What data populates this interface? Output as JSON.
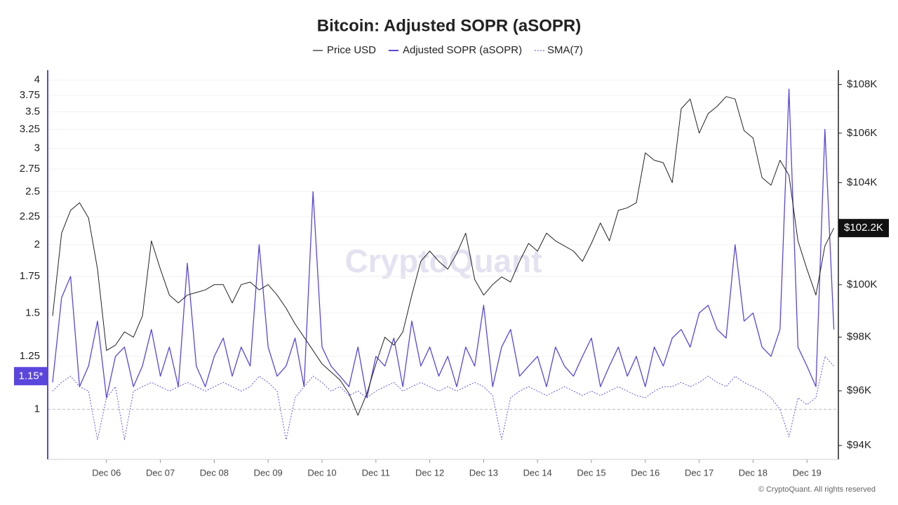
{
  "chart_data": {
    "type": "line",
    "title": "Bitcoin: Adjusted SOPR (aSOPR)",
    "watermark": "CryptoQuant",
    "footer": "© CryptoQuant. All rights reserved",
    "categories": [
      null,
      null,
      null,
      null,
      null,
      null,
      "Dec 06",
      null,
      null,
      null,
      null,
      null,
      "Dec 07",
      null,
      null,
      null,
      null,
      null,
      "Dec 08",
      null,
      null,
      null,
      null,
      null,
      "Dec 09",
      null,
      null,
      null,
      null,
      null,
      "Dec 10",
      null,
      null,
      null,
      null,
      null,
      "Dec 11",
      null,
      null,
      null,
      null,
      null,
      "Dec 12",
      null,
      null,
      null,
      null,
      null,
      "Dec 13",
      null,
      null,
      null,
      null,
      null,
      "Dec 14",
      null,
      null,
      null,
      null,
      null,
      "Dec 15",
      null,
      null,
      null,
      null,
      null,
      "Dec 16",
      null,
      null,
      null,
      null,
      null,
      "Dec 17",
      null,
      null,
      null,
      null,
      null,
      "Dec 18",
      null,
      null,
      null,
      null,
      null,
      "Dec 19",
      null,
      null,
      null
    ],
    "series": [
      {
        "name": "Price USD",
        "color": "#222222",
        "axis": "y2",
        "values": [
          98800,
          102000,
          102900,
          103200,
          102600,
          100600,
          97500,
          97700,
          98200,
          98000,
          98800,
          101700,
          100600,
          99600,
          99300,
          99600,
          99700,
          99800,
          100000,
          100000,
          99300,
          100000,
          100100,
          99800,
          100000,
          99600,
          99100,
          98500,
          98000,
          97500,
          97000,
          96700,
          96400,
          95900,
          95100,
          95900,
          97000,
          98000,
          97700,
          98200,
          99600,
          100900,
          101300,
          100900,
          100600,
          101200,
          102000,
          100200,
          99600,
          100000,
          100300,
          100100,
          100900,
          101600,
          101300,
          102000,
          101700,
          101500,
          101300,
          100900,
          101600,
          102400,
          101700,
          102900,
          103000,
          103200,
          105200,
          104900,
          104800,
          104000,
          107000,
          107400,
          106000,
          106800,
          107100,
          107500,
          107400,
          106100,
          105800,
          104200,
          103900,
          104900,
          104300,
          101700,
          100600,
          99600,
          101500,
          102200
        ]
      },
      {
        "name": "Adjusted SOPR (aSOPR)",
        "color": "#5a46dc",
        "values": [
          1.12,
          1.6,
          1.75,
          1.1,
          1.2,
          1.45,
          1.05,
          1.25,
          1.3,
          1.1,
          1.2,
          1.4,
          1.15,
          1.3,
          1.1,
          1.85,
          1.2,
          1.1,
          1.25,
          1.35,
          1.15,
          1.3,
          1.2,
          2.0,
          1.3,
          1.15,
          1.2,
          1.35,
          1.1,
          2.5,
          1.3,
          1.2,
          1.15,
          1.1,
          1.3,
          1.05,
          1.25,
          1.2,
          1.35,
          1.1,
          1.45,
          1.2,
          1.3,
          1.15,
          1.25,
          1.1,
          1.3,
          1.2,
          1.55,
          1.1,
          1.3,
          1.4,
          1.15,
          1.2,
          1.25,
          1.1,
          1.3,
          1.2,
          1.15,
          1.25,
          1.35,
          1.1,
          1.2,
          1.3,
          1.15,
          1.25,
          1.1,
          1.3,
          1.2,
          1.35,
          1.4,
          1.3,
          1.5,
          1.55,
          1.4,
          1.35,
          2.0,
          1.45,
          1.5,
          1.3,
          1.25,
          1.4,
          3.85,
          1.3,
          1.2,
          1.1,
          3.25,
          1.4
        ]
      },
      {
        "name": "SMA(7)",
        "color": "#5a46dc",
        "dashed": true,
        "values": [
          1.08,
          1.12,
          1.15,
          1.1,
          1.08,
          0.88,
          1.05,
          1.1,
          0.88,
          1.08,
          1.1,
          1.12,
          1.1,
          1.08,
          1.1,
          1.12,
          1.1,
          1.08,
          1.1,
          1.12,
          1.1,
          1.08,
          1.1,
          1.15,
          1.12,
          1.08,
          0.88,
          1.05,
          1.1,
          1.15,
          1.12,
          1.08,
          1.1,
          1.06,
          1.08,
          1.05,
          1.08,
          1.1,
          1.12,
          1.08,
          1.1,
          1.12,
          1.1,
          1.08,
          1.1,
          1.08,
          1.1,
          1.12,
          1.1,
          1.06,
          0.88,
          1.05,
          1.08,
          1.1,
          1.08,
          1.06,
          1.08,
          1.1,
          1.08,
          1.06,
          1.08,
          1.06,
          1.08,
          1.1,
          1.08,
          1.06,
          1.05,
          1.08,
          1.1,
          1.1,
          1.12,
          1.1,
          1.12,
          1.15,
          1.12,
          1.1,
          1.15,
          1.12,
          1.1,
          1.08,
          1.05,
          1.0,
          0.89,
          1.05,
          1.02,
          1.05,
          1.25,
          1.2
        ]
      }
    ],
    "ylim": [
      0.81,
      4.17
    ],
    "yticks": [
      1,
      1.25,
      1.5,
      1.75,
      2,
      2.25,
      2.5,
      2.75,
      3,
      3.25,
      3.5,
      3.75,
      4
    ],
    "ylog": true,
    "y2lim": [
      93500,
      108600
    ],
    "y2ticks": [
      {
        "value": 94000,
        "label": "$94K"
      },
      {
        "value": 96000,
        "label": "$96K"
      },
      {
        "value": 98000,
        "label": "$98K"
      },
      {
        "value": 100000,
        "label": "$100K"
      },
      {
        "value": 102000,
        "label": "$102K"
      },
      {
        "value": 104000,
        "label": "$104K"
      },
      {
        "value": 106000,
        "label": "$106K"
      },
      {
        "value": 108000,
        "label": "$108K"
      }
    ],
    "y2log": true,
    "y_marker": {
      "value": 1.15,
      "label": "1.15*"
    },
    "y2_marker": {
      "value": 102200,
      "label": "$102.2K"
    },
    "grid": true
  }
}
